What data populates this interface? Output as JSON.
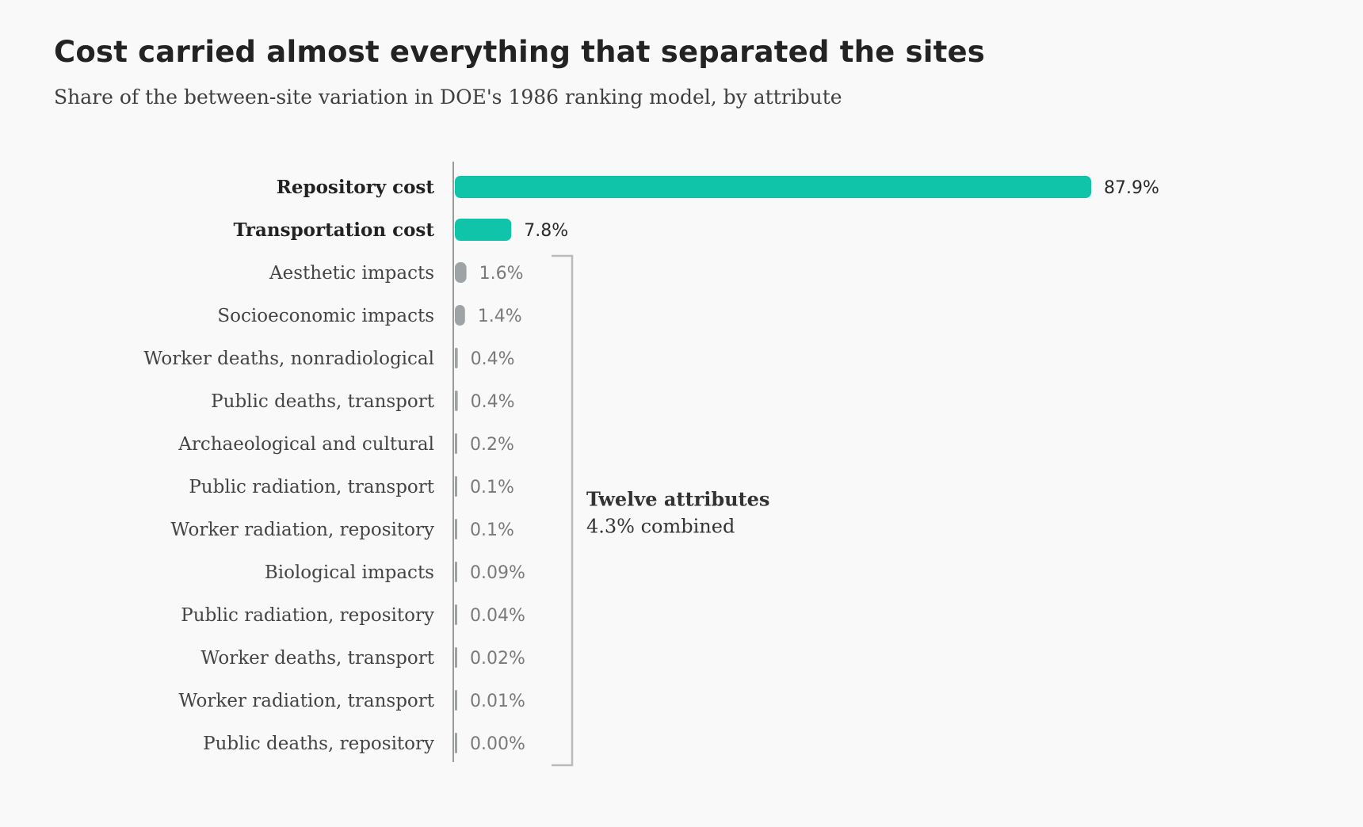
{
  "title": "Cost carried almost everything that separated the sites",
  "subtitle": "Share of the between-site variation in DOE's 1986 ranking model, by attribute",
  "colors": {
    "highlight": "#0fc4a8",
    "muted": "#9ea3a5",
    "axis": "#9a9a9a",
    "bracket": "#b7bbbd"
  },
  "chart_data": {
    "type": "bar",
    "orientation": "horizontal",
    "unit": "%",
    "categories": [
      "Repository cost",
      "Transportation cost",
      "Aesthetic impacts",
      "Socioeconomic impacts",
      "Worker deaths, nonradiological",
      "Public deaths, transport",
      "Archaeological and cultural",
      "Public radiation, transport",
      "Worker radiation, repository",
      "Biological impacts",
      "Public radiation, repository",
      "Worker deaths, transport",
      "Worker radiation, transport",
      "Public deaths, repository"
    ],
    "values": [
      87.9,
      7.8,
      1.6,
      1.4,
      0.4,
      0.4,
      0.2,
      0.1,
      0.1,
      0.09,
      0.04,
      0.02,
      0.01,
      0.0
    ],
    "value_labels": [
      "87.9%",
      "7.8%",
      "1.6%",
      "1.4%",
      "0.4%",
      "0.4%",
      "0.2%",
      "0.1%",
      "0.1%",
      "0.09%",
      "0.04%",
      "0.02%",
      "0.01%",
      "0.00%"
    ],
    "highlighted": [
      true,
      true,
      false,
      false,
      false,
      false,
      false,
      false,
      false,
      false,
      false,
      false,
      false,
      false
    ],
    "xlim": [
      0,
      87.9
    ],
    "grid": false,
    "annotation": {
      "line1": "Twelve attributes",
      "line2": "4.3% combined",
      "group_from": "Aesthetic impacts",
      "group_to": "Public deaths, repository"
    }
  }
}
